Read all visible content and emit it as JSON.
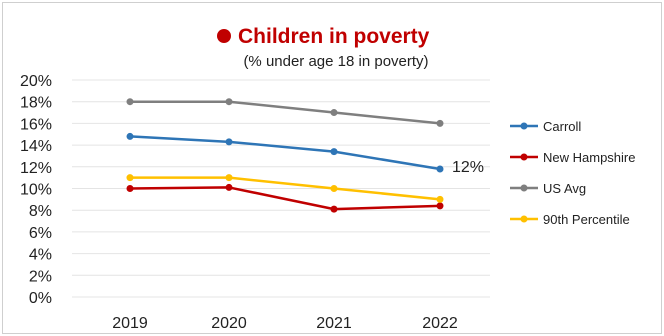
{
  "chart_data": {
    "type": "line",
    "title": "Children in poverty",
    "subtitle": "(% under age 18 in poverty)",
    "categories": [
      "2019",
      "2020",
      "2021",
      "2022"
    ],
    "ylim": [
      0,
      20
    ],
    "yticks": [
      "0%",
      "2%",
      "4%",
      "6%",
      "8%",
      "10%",
      "12%",
      "14%",
      "16%",
      "18%",
      "20%"
    ],
    "series": [
      {
        "name": "Carroll",
        "color": "#2e75b6",
        "values": [
          14.8,
          14.3,
          13.4,
          11.8
        ]
      },
      {
        "name": "New Hampshire",
        "color": "#c00000",
        "values": [
          10.0,
          10.1,
          8.1,
          8.4
        ]
      },
      {
        "name": "US Avg",
        "color": "#7f7f7f",
        "values": [
          18.0,
          18.0,
          17.0,
          16.0
        ]
      },
      {
        "name": "90th Percentile",
        "color": "#ffc000",
        "values": [
          11.0,
          11.0,
          10.0,
          9.0
        ]
      }
    ],
    "annotation": {
      "series": "Carroll",
      "index": 3,
      "text": "12%"
    },
    "title_color": "#c00000",
    "legend_position": "right",
    "grid": true
  }
}
